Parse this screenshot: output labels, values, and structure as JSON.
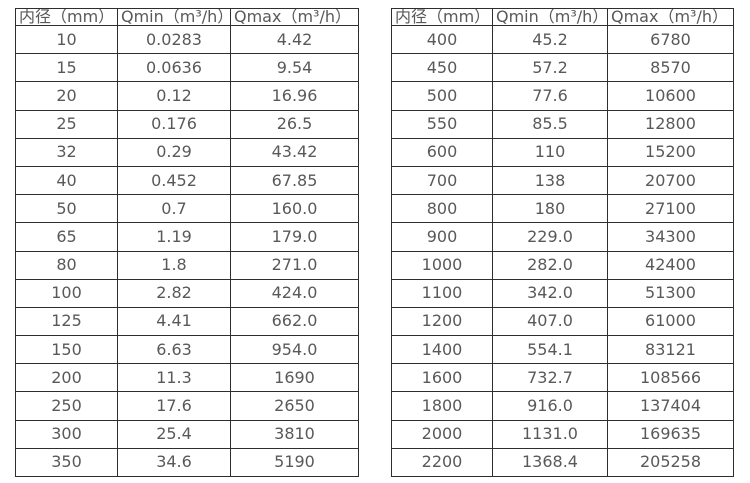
{
  "colors": {
    "background": "#ffffff",
    "table_border": "#2e2e2e",
    "text": "#595959"
  },
  "tables": [
    {
      "name": "flow-spec-small-diameters",
      "headers": [
        "内径（mm）",
        "Qmin（m³/h）",
        "Qmax（m³/h）"
      ],
      "rows": [
        [
          "10",
          "0.0283",
          "4.42"
        ],
        [
          "15",
          "0.0636",
          "9.54"
        ],
        [
          "20",
          "0.12",
          "16.96"
        ],
        [
          "25",
          "0.176",
          "26.5"
        ],
        [
          "32",
          "0.29",
          "43.42"
        ],
        [
          "40",
          "0.452",
          "67.85"
        ],
        [
          "50",
          "0.7",
          "160.0"
        ],
        [
          "65",
          "1.19",
          "179.0"
        ],
        [
          "80",
          "1.8",
          "271.0"
        ],
        [
          "100",
          "2.82",
          "424.0"
        ],
        [
          "125",
          "4.41",
          "662.0"
        ],
        [
          "150",
          "6.63",
          "954.0"
        ],
        [
          "200",
          "11.3",
          "1690"
        ],
        [
          "250",
          "17.6",
          "2650"
        ],
        [
          "300",
          "25.4",
          "3810"
        ],
        [
          "350",
          "34.6",
          "5190"
        ]
      ]
    },
    {
      "name": "flow-spec-large-diameters",
      "headers": [
        "内径（mm）",
        "Qmin（m³/h）",
        "Qmax（m³/h）"
      ],
      "rows": [
        [
          "400",
          "45.2",
          "6780"
        ],
        [
          "450",
          "57.2",
          "8570"
        ],
        [
          "500",
          "77.6",
          "10600"
        ],
        [
          "550",
          "85.5",
          "12800"
        ],
        [
          "600",
          "110",
          "15200"
        ],
        [
          "700",
          "138",
          "20700"
        ],
        [
          "800",
          "180",
          "27100"
        ],
        [
          "900",
          "229.0",
          "34300"
        ],
        [
          "1000",
          "282.0",
          "42400"
        ],
        [
          "1100",
          "342.0",
          "51300"
        ],
        [
          "1200",
          "407.0",
          "61000"
        ],
        [
          "1400",
          "554.1",
          "83121"
        ],
        [
          "1600",
          "732.7",
          "108566"
        ],
        [
          "1800",
          "916.0",
          "137404"
        ],
        [
          "2000",
          "1131.0",
          "169635"
        ],
        [
          "2200",
          "1368.4",
          "205258"
        ]
      ]
    }
  ]
}
